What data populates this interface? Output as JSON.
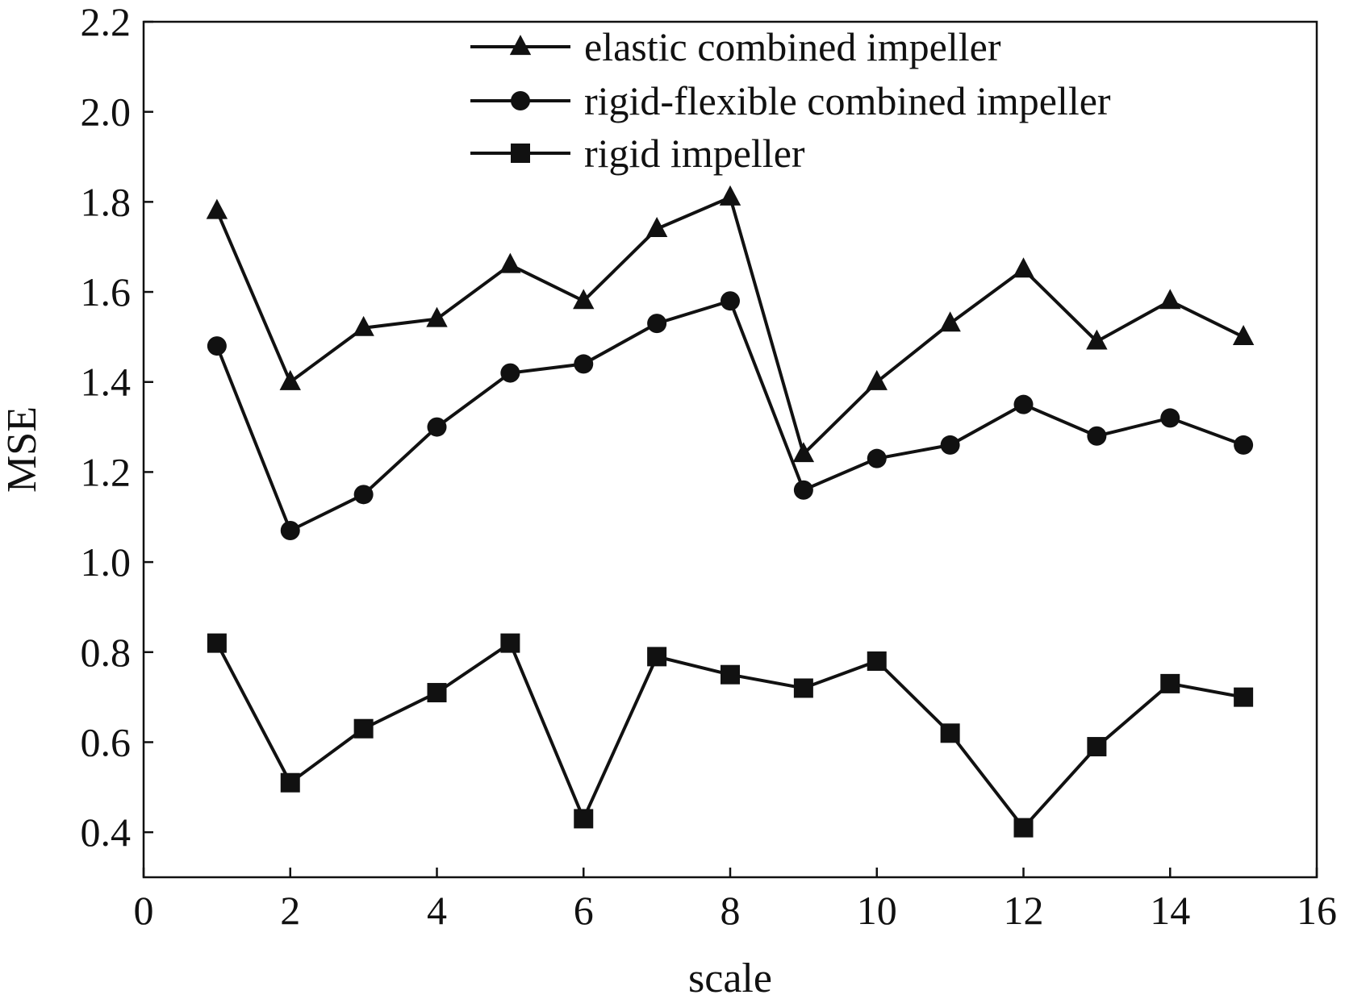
{
  "chart_data": {
    "type": "line",
    "xlabel": "scale",
    "ylabel": "MSE",
    "xlim": [
      0,
      16
    ],
    "ylim": [
      0.3,
      2.2
    ],
    "xticks": [
      0,
      2,
      4,
      6,
      8,
      10,
      12,
      14,
      16
    ],
    "yticks": [
      0.4,
      0.6,
      0.8,
      1.0,
      1.2,
      1.4,
      1.6,
      1.8,
      2.0,
      2.2
    ],
    "x": [
      1,
      2,
      3,
      4,
      5,
      6,
      7,
      8,
      9,
      10,
      11,
      12,
      13,
      14,
      15
    ],
    "grid": false,
    "legend_position": "top-right",
    "series": [
      {
        "name": "elastic combined impeller",
        "marker": "triangle",
        "color": "#111111",
        "values": [
          1.78,
          1.4,
          1.52,
          1.54,
          1.66,
          1.58,
          1.74,
          1.81,
          1.24,
          1.4,
          1.53,
          1.65,
          1.49,
          1.58,
          1.5
        ]
      },
      {
        "name": "rigid-flexible combined impeller",
        "marker": "circle",
        "color": "#111111",
        "values": [
          1.48,
          1.07,
          1.15,
          1.3,
          1.42,
          1.44,
          1.53,
          1.58,
          1.16,
          1.23,
          1.26,
          1.35,
          1.28,
          1.32,
          1.26
        ]
      },
      {
        "name": "rigid impeller",
        "marker": "square",
        "color": "#111111",
        "values": [
          0.82,
          0.51,
          0.63,
          0.71,
          0.82,
          0.43,
          0.79,
          0.75,
          0.72,
          0.78,
          0.62,
          0.41,
          0.59,
          0.73,
          0.7
        ]
      }
    ]
  }
}
